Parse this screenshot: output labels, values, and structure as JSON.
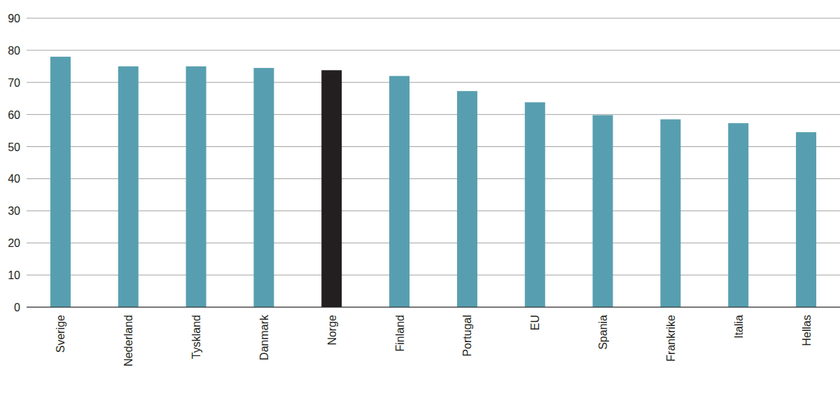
{
  "chart_data": {
    "type": "bar",
    "categories": [
      "Sverige",
      "Nederland",
      "Tyskland",
      "Danmark",
      "Norge",
      "Finland",
      "Portugal",
      "EU",
      "Spania",
      "Frankrike",
      "Italia",
      "Hellas"
    ],
    "values": [
      78,
      75,
      75,
      74.5,
      73.8,
      72,
      67.3,
      63.8,
      59.8,
      58.5,
      57.3,
      54.5
    ],
    "colors": [
      "#579fb0",
      "#579fb0",
      "#579fb0",
      "#579fb0",
      "#231f20",
      "#579fb0",
      "#579fb0",
      "#579fb0",
      "#579fb0",
      "#579fb0",
      "#579fb0",
      "#579fb0"
    ],
    "ylim": [
      0,
      90
    ],
    "yticks": [
      0,
      10,
      20,
      30,
      40,
      50,
      60,
      70,
      80,
      90
    ],
    "grid": true
  }
}
